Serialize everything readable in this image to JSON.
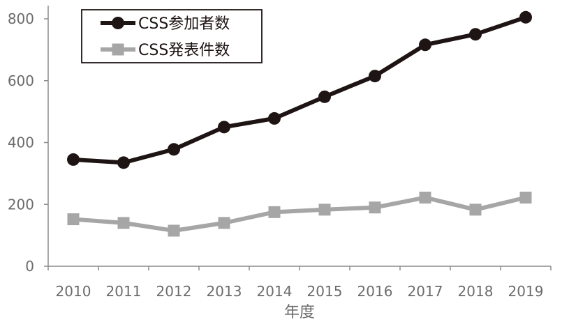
{
  "chart_data": {
    "type": "line",
    "x": [
      "2010",
      "2011",
      "2012",
      "2013",
      "2014",
      "2015",
      "2016",
      "2017",
      "2018",
      "2019"
    ],
    "xlabel": "年度",
    "ylabel": "",
    "ylim": [
      0,
      850
    ],
    "yticks": [
      "0",
      "200",
      "400",
      "600",
      "800"
    ],
    "grid": false,
    "legend_position": "top-left",
    "series": [
      {
        "name": "CSS参加者数",
        "values": [
          345,
          335,
          378,
          450,
          478,
          548,
          615,
          716,
          750,
          805
        ],
        "color": "#1e1414",
        "marker": "circle"
      },
      {
        "name": "CSS発表件数",
        "values": [
          152,
          140,
          115,
          140,
          175,
          183,
          190,
          222,
          183,
          222
        ],
        "color": "#a6a6a6",
        "marker": "square"
      }
    ]
  }
}
